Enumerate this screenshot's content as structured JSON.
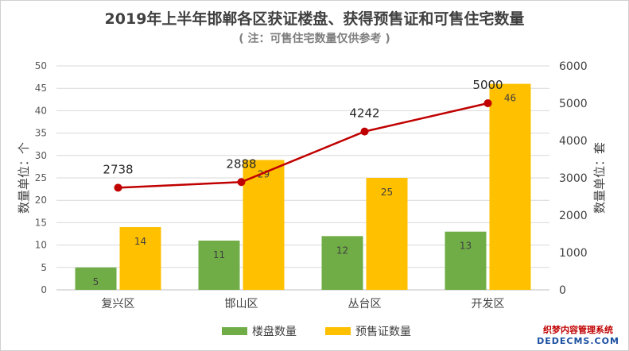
{
  "title": "2019年上半年邯郸各区获证楼盘、获得预售证和可售住宅数量",
  "subtitle": "( 注：可售住宅数量仅供参考 )",
  "watermark": {
    "line1": "织梦内容管理系统",
    "line2": "DEDECMS.COM"
  },
  "chart_data": {
    "type": "bar",
    "categories": [
      "复兴区",
      "邯山区",
      "丛台区",
      "开发区"
    ],
    "series": [
      {
        "name": "楼盘数量",
        "type": "bar",
        "axis": "left",
        "color": "#70ad47",
        "values": [
          5,
          11,
          12,
          13
        ]
      },
      {
        "name": "预售证数量",
        "type": "bar",
        "axis": "left",
        "color": "#ffc000",
        "values": [
          14,
          29,
          25,
          46
        ]
      },
      {
        "name": "",
        "type": "line",
        "axis": "right",
        "color": "#c00000",
        "values": [
          2738,
          2888,
          4242,
          5000
        ]
      }
    ],
    "ylabel": "数量单位：个",
    "y2label": "数量单位：套",
    "ylim": [
      0,
      50
    ],
    "y2lim": [
      0,
      6000
    ],
    "yticks": [
      0,
      5,
      10,
      15,
      20,
      25,
      30,
      35,
      40,
      45,
      50
    ],
    "y2ticks": [
      0,
      1000,
      2000,
      3000,
      4000,
      5000,
      6000
    ],
    "grid": true,
    "legend_position": "bottom"
  }
}
